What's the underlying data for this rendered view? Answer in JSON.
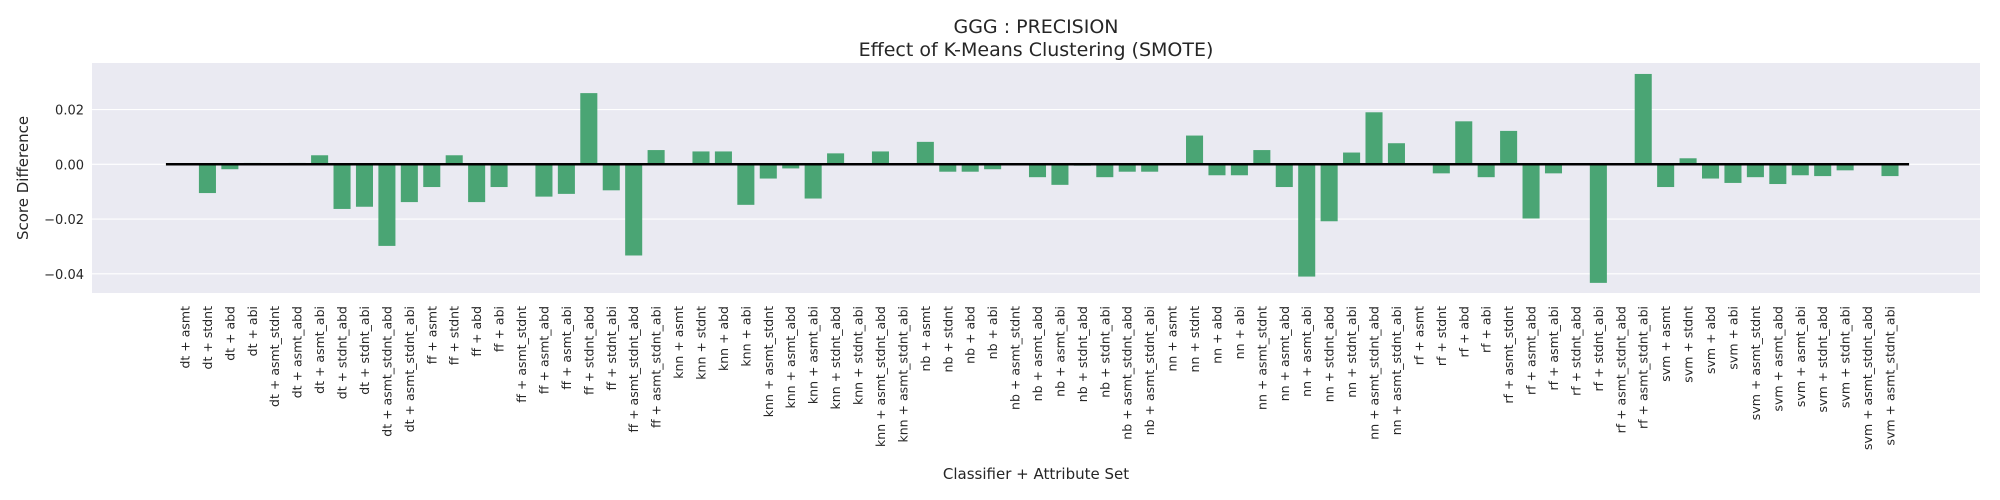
{
  "chart_data": {
    "type": "bar",
    "title": "GGG : PRECISION",
    "subtitle": "Effect of K-Means Clustering (SMOTE)",
    "xlabel": "Classifier + Attribute Set",
    "ylabel": "Score Difference",
    "ylim": [
      -0.047,
      0.037
    ],
    "yticks": [
      -0.04,
      -0.02,
      0.0,
      0.02
    ],
    "ytick_labels": [
      "−0.04",
      "−0.02",
      "0.00",
      "0.02"
    ],
    "grid": true,
    "bar_color": "#4aa574",
    "background_color": "#eaeaf2",
    "zero_line_color": "#000000",
    "categories": [
      "dt + asmt",
      "dt + stdnt",
      "dt + abd",
      "dt + abi",
      "dt + asmt_stdnt",
      "dt + asmt_abd",
      "dt + asmt_abi",
      "dt + stdnt_abd",
      "dt + stdnt_abi",
      "dt + asmt_stdnt_abd",
      "dt + asmt_stdnt_abi",
      "ff + asmt",
      "ff + stdnt",
      "ff + abd",
      "ff + abi",
      "ff + asmt_stdnt",
      "ff + asmt_abd",
      "ff + asmt_abi",
      "ff + stdnt_abd",
      "ff + stdnt_abi",
      "ff + asmt_stdnt_abd",
      "ff + asmt_stdnt_abi",
      "knn + asmt",
      "knn + stdnt",
      "knn + abd",
      "knn + abi",
      "knn + asmt_stdnt",
      "knn + asmt_abd",
      "knn + asmt_abi",
      "knn + stdnt_abd",
      "knn + stdnt_abi",
      "knn + asmt_stdnt_abd",
      "knn + asmt_stdnt_abi",
      "nb + asmt",
      "nb + stdnt",
      "nb + abd",
      "nb + abi",
      "nb + asmt_stdnt",
      "nb + asmt_abd",
      "nb + asmt_abi",
      "nb + stdnt_abd",
      "nb + stdnt_abi",
      "nb + asmt_stdnt_abd",
      "nb + asmt_stdnt_abi",
      "nn + asmt",
      "nn + stdnt",
      "nn + abd",
      "nn + abi",
      "nn + asmt_stdnt",
      "nn + asmt_abd",
      "nn + asmt_abi",
      "nn + stdnt_abd",
      "nn + stdnt_abi",
      "nn + asmt_stdnt_abd",
      "nn + asmt_stdnt_abi",
      "rf + asmt",
      "rf + stdnt",
      "rf + abd",
      "rf + abi",
      "rf + asmt_stdnt",
      "rf + asmt_abd",
      "rf + asmt_abi",
      "rf + stdnt_abd",
      "rf + stdnt_abi",
      "rf + asmt_stdnt_abd",
      "rf + asmt_stdnt_abi",
      "svm + asmt",
      "svm + stdnt",
      "svm + abd",
      "svm + abi",
      "svm + asmt_stdnt",
      "svm + asmt_abd",
      "svm + asmt_abi",
      "svm + stdnt_abd",
      "svm + stdnt_abi",
      "svm + asmt_stdnt_abd",
      "svm + asmt_stdnt_abi"
    ],
    "values": [
      0.0,
      -0.0105,
      -0.0018,
      0.0005,
      0.0,
      0.0005,
      0.0033,
      -0.0163,
      -0.0155,
      -0.0298,
      -0.0138,
      -0.0083,
      0.0033,
      -0.0138,
      -0.0083,
      0.0,
      -0.0118,
      -0.0108,
      0.026,
      -0.0095,
      -0.0333,
      0.0052,
      0.0,
      0.0047,
      0.0047,
      -0.0148,
      -0.0052,
      -0.0015,
      -0.0125,
      0.004,
      0.0,
      0.0047,
      0.0,
      0.0082,
      -0.0027,
      -0.0027,
      -0.0018,
      0.0,
      -0.0047,
      -0.0075,
      -0.0005,
      -0.0047,
      -0.0027,
      -0.0027,
      0.0,
      0.0105,
      -0.004,
      -0.004,
      0.0052,
      -0.0083,
      -0.041,
      -0.0208,
      0.0043,
      0.019,
      0.0077,
      0.0,
      -0.0033,
      0.0157,
      -0.0047,
      0.0122,
      -0.0198,
      -0.0033,
      0.0,
      -0.0433,
      0.0,
      0.033,
      -0.0083,
      0.0022,
      -0.0052,
      -0.0068,
      -0.0047,
      -0.0072,
      -0.004,
      -0.0043,
      -0.0022,
      0.0,
      -0.0043
    ]
  }
}
